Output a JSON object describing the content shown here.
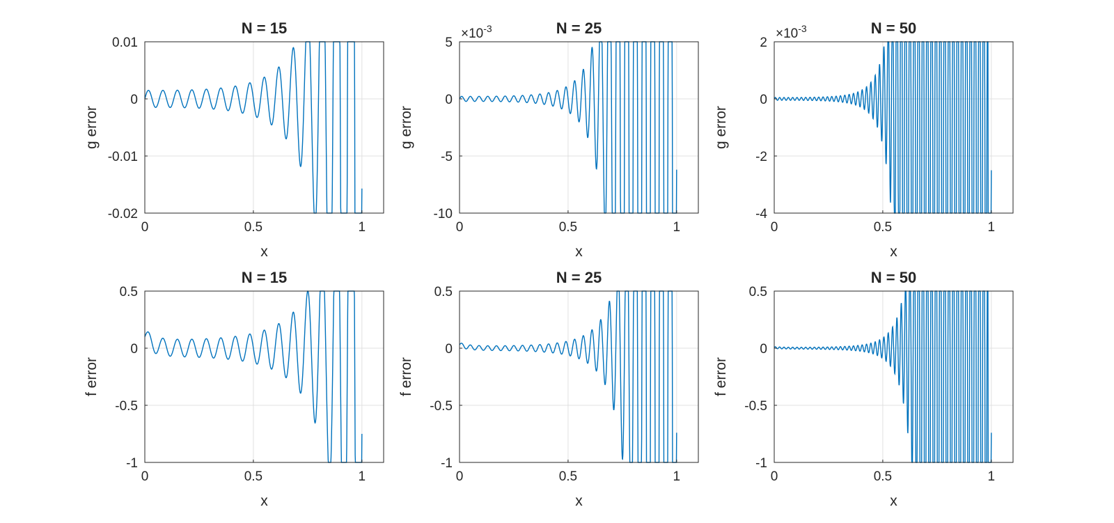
{
  "chart_data": [
    {
      "type": "line",
      "title": "N = 15",
      "xlabel": "x",
      "ylabel": "g error",
      "xlim": [
        0,
        1.1
      ],
      "ylim": [
        -0.02,
        0.01
      ],
      "grid": true,
      "xticks": [
        "0",
        "0.5",
        "1"
      ],
      "yticks": [
        "-0.02",
        "-0.01",
        "0",
        "0.01"
      ],
      "y_exponent": "",
      "series": [
        {
          "color": "#0072bd",
          "x_range": [
            0,
            1
          ],
          "n": 15,
          "base_amp": 0.0015,
          "growth": 5.6,
          "start": 0,
          "end": -0.0157
        }
      ]
    },
    {
      "type": "line",
      "title": "N = 25",
      "xlabel": "x",
      "ylabel": "g error",
      "xlim": [
        0,
        1.1
      ],
      "ylim": [
        -10,
        5
      ],
      "grid": true,
      "xticks": [
        "0",
        "0.5",
        "1"
      ],
      "yticks": [
        "-10",
        "-5",
        "0",
        "5"
      ],
      "y_exponent": "-3",
      "series": [
        {
          "color": "#0072bd",
          "x_range": [
            0,
            1
          ],
          "n": 25,
          "base_amp": 0.22,
          "growth": 13.3,
          "start": 0,
          "end": -6.2
        }
      ]
    },
    {
      "type": "line",
      "title": "N = 50",
      "xlabel": "x",
      "ylabel": "g error",
      "xlim": [
        0,
        1.1
      ],
      "ylim": [
        -4,
        2
      ],
      "grid": true,
      "xticks": [
        "0",
        "0.5",
        "1"
      ],
      "yticks": [
        "-4",
        "-2",
        "0",
        "2"
      ],
      "y_exponent": "-3",
      "series": [
        {
          "color": "#0072bd",
          "x_range": [
            0,
            1
          ],
          "n": 50,
          "base_amp": 0.05,
          "growth": 28.0,
          "start": 0,
          "end": -2.5
        }
      ]
    },
    {
      "type": "line",
      "title": "N = 15",
      "xlabel": "x",
      "ylabel": "f error",
      "xlim": [
        0,
        1.1
      ],
      "ylim": [
        -1,
        0.5
      ],
      "grid": true,
      "xticks": [
        "0",
        "0.5",
        "1"
      ],
      "yticks": [
        "-1",
        "-0.5",
        "0",
        "0.5"
      ],
      "y_exponent": "",
      "series": [
        {
          "color": "#0072bd",
          "x_range": [
            0,
            1
          ],
          "n": 15,
          "base_amp": 0.075,
          "growth": 4.5,
          "start": 0.1,
          "end": -0.75
        }
      ]
    },
    {
      "type": "line",
      "title": "N = 25",
      "xlabel": "x",
      "ylabel": "f error",
      "xlim": [
        0,
        1.1
      ],
      "ylim": [
        -1,
        0.5
      ],
      "grid": true,
      "xticks": [
        "0",
        "0.5",
        "1"
      ],
      "yticks": [
        "-1",
        "-0.5",
        "0",
        "0.5"
      ],
      "y_exponent": "",
      "series": [
        {
          "color": "#0072bd",
          "x_range": [
            0,
            1
          ],
          "n": 25,
          "base_amp": 0.02,
          "growth": 9.2,
          "start": 0.03,
          "end": -0.74
        }
      ]
    },
    {
      "type": "line",
      "title": "N = 50",
      "xlabel": "x",
      "ylabel": "f error",
      "xlim": [
        0,
        1.1
      ],
      "ylim": [
        -1,
        0.5
      ],
      "grid": true,
      "xticks": [
        "0",
        "0.5",
        "1"
      ],
      "yticks": [
        "-1",
        "-0.5",
        "0",
        "0.5"
      ],
      "y_exponent": "",
      "series": [
        {
          "color": "#0072bd",
          "x_range": [
            0,
            1
          ],
          "n": 50,
          "base_amp": 0.008,
          "growth": 19.5,
          "start": 0.005,
          "end": -0.74
        }
      ]
    }
  ],
  "colors": {
    "axis": "#262626",
    "grid": "#e0e0e0",
    "line": "#0072bd"
  }
}
